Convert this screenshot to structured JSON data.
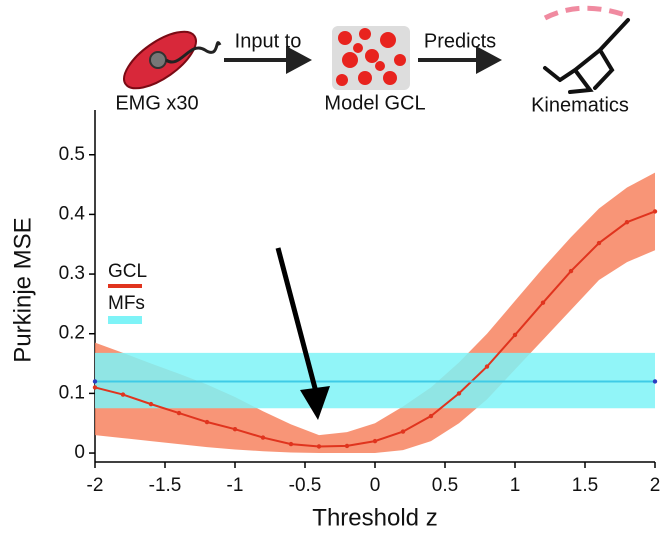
{
  "diagram": {
    "input_label": "EMG x30",
    "arrow1_label": "Input to",
    "model_label": "Model GCL",
    "arrow2_label": "Predicts",
    "output_label": "Kinematics"
  },
  "chart_data": {
    "type": "line",
    "x_label": "Threshold z",
    "y_label": "Purkinje MSE",
    "xlim": [
      -2,
      2
    ],
    "ylim": [
      -0.015,
      0.575
    ],
    "xticks": [
      -2,
      -1.5,
      -1,
      -0.5,
      0,
      0.5,
      1,
      1.5,
      2
    ],
    "yticks": [
      0,
      0.1,
      0.2,
      0.3,
      0.4,
      0.5
    ],
    "legend": "upper left",
    "series": [
      {
        "name": "GCL",
        "color": "#e0341e",
        "band_color": "#f7825f",
        "x": [
          -2,
          -1.8,
          -1.6,
          -1.4,
          -1.2,
          -1,
          -0.8,
          -0.6,
          -0.4,
          -0.2,
          0,
          0.2,
          0.4,
          0.6,
          0.8,
          1,
          1.2,
          1.4,
          1.6,
          1.8,
          2
        ],
        "values": [
          0.11,
          0.098,
          0.082,
          0.067,
          0.052,
          0.04,
          0.026,
          0.015,
          0.011,
          0.012,
          0.02,
          0.036,
          0.062,
          0.1,
          0.145,
          0.198,
          0.252,
          0.305,
          0.352,
          0.387,
          0.405
        ],
        "upper": [
          0.185,
          0.168,
          0.15,
          0.133,
          0.115,
          0.094,
          0.07,
          0.048,
          0.03,
          0.035,
          0.05,
          0.078,
          0.11,
          0.152,
          0.2,
          0.255,
          0.31,
          0.362,
          0.41,
          0.445,
          0.47
        ],
        "lower": [
          0.03,
          0.025,
          0.02,
          0.015,
          0.01,
          0.006,
          0.003,
          0.001,
          0,
          0,
          0,
          0.005,
          0.02,
          0.05,
          0.09,
          0.14,
          0.19,
          0.24,
          0.29,
          0.32,
          0.34
        ]
      },
      {
        "name": "MFs",
        "color": "#3fcbe6",
        "band_color": "#7ef3f7",
        "x": [
          -2,
          2
        ],
        "values": [
          0.12,
          0.12
        ],
        "upper": [
          0.168,
          0.168
        ],
        "lower": [
          0.075,
          0.075
        ]
      }
    ]
  }
}
